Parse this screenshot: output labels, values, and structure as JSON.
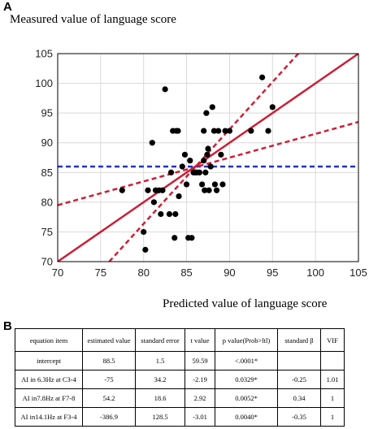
{
  "panel_a": {
    "label": "A"
  },
  "panel_b": {
    "label": "B"
  },
  "chart_data": {
    "type": "scatter",
    "title": "",
    "ylabel": "Measured value of language score",
    "xlabel": "Predicted value of language score",
    "xlim": [
      70,
      105
    ],
    "ylim": [
      70,
      105
    ],
    "xticks": [
      "70",
      "75",
      "80",
      "85",
      "90",
      "95",
      "100",
      "105"
    ],
    "yticks": [
      "70",
      "75",
      "80",
      "85",
      "90",
      "95",
      "100",
      "105"
    ],
    "grid": true,
    "colors": {
      "points": "#000000",
      "fit": "#cc1f36",
      "mean": "#2233cc"
    },
    "points": [
      [
        77.5,
        82
      ],
      [
        80,
        75
      ],
      [
        80.2,
        72
      ],
      [
        80.5,
        82
      ],
      [
        81,
        90
      ],
      [
        81.2,
        80
      ],
      [
        81.4,
        82
      ],
      [
        81.8,
        82
      ],
      [
        82,
        78
      ],
      [
        82.2,
        82
      ],
      [
        82.5,
        99
      ],
      [
        83,
        78
      ],
      [
        83.2,
        85
      ],
      [
        83.4,
        92
      ],
      [
        83.6,
        74
      ],
      [
        83.7,
        78
      ],
      [
        83.8,
        92
      ],
      [
        84,
        92
      ],
      [
        84.1,
        81
      ],
      [
        84.5,
        86
      ],
      [
        84.8,
        88
      ],
      [
        85,
        83
      ],
      [
        85.2,
        74
      ],
      [
        85.4,
        87
      ],
      [
        85.6,
        74
      ],
      [
        85.8,
        85
      ],
      [
        86,
        85
      ],
      [
        86.2,
        85
      ],
      [
        86.5,
        85
      ],
      [
        86.8,
        83
      ],
      [
        87,
        92
      ],
      [
        87,
        87
      ],
      [
        87.1,
        82
      ],
      [
        87.2,
        85
      ],
      [
        87.3,
        95
      ],
      [
        87.4,
        88
      ],
      [
        87.5,
        89
      ],
      [
        87.6,
        82
      ],
      [
        87.8,
        86
      ],
      [
        88,
        96
      ],
      [
        88.2,
        92
      ],
      [
        88.3,
        83
      ],
      [
        88.5,
        82
      ],
      [
        88.7,
        92
      ],
      [
        89,
        88
      ],
      [
        89.2,
        83
      ],
      [
        89.5,
        92
      ],
      [
        90,
        92
      ],
      [
        92.5,
        92
      ],
      [
        93.8,
        101
      ],
      [
        94.5,
        92
      ],
      [
        95,
        96
      ]
    ],
    "fit_line": {
      "x": [
        70,
        105
      ],
      "y": [
        70,
        105
      ]
    },
    "mean_line": {
      "y": 86
    },
    "ci_upper": {
      "x": [
        70,
        105
      ],
      "y": [
        79.5,
        93.5
      ]
    },
    "ci_lower": {
      "x": [
        76,
        98
      ],
      "y": [
        70,
        105
      ]
    }
  },
  "table": {
    "headers": [
      "equation item",
      "estimated value",
      "standard error",
      "t value",
      "p value(Prob>ltl)",
      "standard β",
      "VIF"
    ],
    "rows": [
      [
        "intercept",
        "88.5",
        "1.5",
        "59.59",
        "<.0001*",
        "",
        ""
      ],
      [
        "AI in 6.3Hz at C3-4",
        "-75",
        "34.2",
        "-2.19",
        "0.0329*",
        "-0.25",
        "1.01"
      ],
      [
        "AI in7.8Hz at F7-8",
        "54.2",
        "18.6",
        "2.92",
        "0.0052*",
        "0.34",
        "1"
      ],
      [
        "AI in14.1Hz at F3-4",
        "-386.9",
        "128.5",
        "-3.01",
        "0.0040*",
        "-0.35",
        "1"
      ]
    ]
  }
}
